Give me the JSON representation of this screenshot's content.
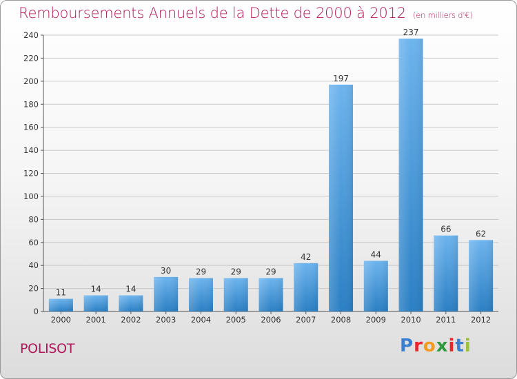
{
  "header": {
    "title": "Remboursements Annuels de la Dette de 2000 à 2012",
    "unit": "(en milliers d'€)"
  },
  "footer": {
    "commune": "POLISOT",
    "logo_letters": [
      "P",
      "r",
      "o",
      "x",
      "i",
      "t",
      "i"
    ],
    "logo_colors": [
      "#3a7fd0",
      "#e8262b",
      "#f29a1f",
      "#2e9a3c",
      "#e8262b",
      "#3a7fd0",
      "#9bc13c"
    ]
  },
  "colors": {
    "title": "#b0185a",
    "bar_top": "#6db4ee",
    "bar_bottom": "#2a7fc4",
    "grid": "#c8c8c8"
  },
  "chart_data": {
    "type": "bar",
    "title": "Remboursements Annuels de la Dette de 2000 à 2012",
    "xlabel": "",
    "ylabel": "",
    "categories": [
      "2000",
      "2001",
      "2002",
      "2003",
      "2004",
      "2005",
      "2006",
      "2007",
      "2008",
      "2009",
      "2010",
      "2011",
      "2012"
    ],
    "values": [
      11,
      14,
      14,
      30,
      29,
      29,
      29,
      42,
      197,
      44,
      237,
      66,
      62
    ],
    "ylim": [
      0,
      240
    ],
    "yticks": [
      0,
      20,
      40,
      60,
      80,
      100,
      120,
      140,
      160,
      180,
      200,
      220,
      240
    ],
    "grid": true
  }
}
